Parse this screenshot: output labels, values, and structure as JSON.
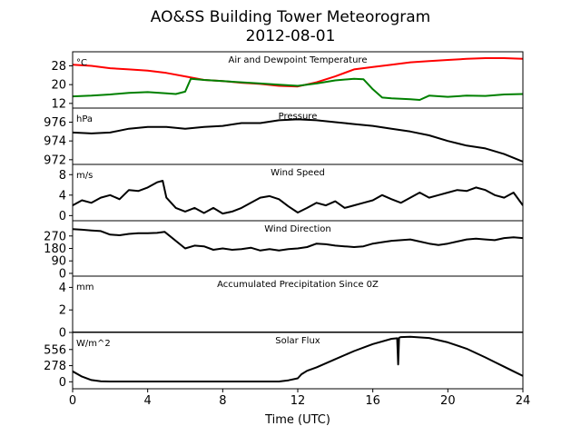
{
  "figure": {
    "title_line1": "AO&SS Building Tower Meteorogram",
    "title_line2": "2012-08-01",
    "xlabel": "Time (UTC)"
  },
  "chart_data": {
    "type": "line",
    "x_range": [
      0,
      24
    ],
    "x_ticks": [
      0,
      4,
      8,
      12,
      16,
      20,
      24
    ],
    "x_tick_labels": [
      "0",
      "4",
      "8",
      "12",
      "16",
      "20",
      "24"
    ],
    "panels": [
      {
        "id": "temperature",
        "title": "Air and Dewpoint Temperature",
        "unit": "°C",
        "ylim": [
          10,
          34
        ],
        "y_ticks": [
          12,
          20,
          28
        ],
        "y_tick_labels": [
          "12",
          "20",
          "28"
        ],
        "series": [
          {
            "color": "#ff0000",
            "x": [
              0,
              1,
              2,
              3,
              4,
              5,
              6,
              7,
              8,
              9,
              10,
              11,
              12,
              13,
              14,
              15,
              16,
              17,
              18,
              19,
              20,
              21,
              22,
              23,
              24
            ],
            "y": [
              28.5,
              28,
              27,
              26.5,
              26,
              25,
              23.5,
              22,
              21.5,
              20.8,
              20.3,
              19.5,
              19.2,
              21,
              23.5,
              26.5,
              27.5,
              28.5,
              29.5,
              30,
              30.5,
              31,
              31.3,
              31.3,
              31
            ]
          },
          {
            "color": "#008000",
            "x": [
              0,
              1,
              2,
              3,
              4,
              5,
              5.5,
              6,
              6.3,
              7,
              8,
              9,
              10,
              11,
              12,
              13,
              14,
              15,
              15.5,
              16,
              16.5,
              17,
              18,
              18.5,
              19,
              20,
              21,
              22,
              23,
              24
            ],
            "y": [
              15,
              15.3,
              15.8,
              16.5,
              16.8,
              16.3,
              16,
              17,
              22.5,
              22,
              21.5,
              21,
              20.5,
              20,
              19.5,
              20.5,
              21.8,
              22.5,
              22.3,
              18,
              14.5,
              14.2,
              13.8,
              13.5,
              15.3,
              14.8,
              15.3,
              15.2,
              15.8,
              16
            ]
          }
        ]
      },
      {
        "id": "pressure",
        "title": "Pressure",
        "unit": "hPa",
        "ylim": [
          971.5,
          977.5
        ],
        "y_ticks": [
          972,
          974,
          976
        ],
        "y_tick_labels": [
          "972",
          "974",
          "976"
        ],
        "series": [
          {
            "color": "#000000",
            "x": [
              0,
              1,
              2,
              3,
              4,
              5,
              6,
              7,
              8,
              9,
              10,
              11,
              12,
              13,
              14,
              15,
              16,
              17,
              18,
              19,
              20,
              21,
              22,
              23,
              24
            ],
            "y": [
              974.9,
              974.8,
              974.9,
              975.3,
              975.5,
              975.5,
              975.3,
              975.5,
              975.6,
              975.9,
              975.9,
              976.2,
              976.3,
              976.2,
              976.0,
              975.8,
              975.6,
              975.3,
              975.0,
              974.6,
              974.0,
              973.5,
              973.2,
              972.6,
              971.8
            ]
          }
        ]
      },
      {
        "id": "wind_speed",
        "title": "Wind Speed",
        "unit": "m/s",
        "ylim": [
          -1,
          10
        ],
        "y_ticks": [
          0,
          4,
          8
        ],
        "y_tick_labels": [
          "0",
          "4",
          "8"
        ],
        "series": [
          {
            "color": "#000000",
            "x": [
              0,
              0.5,
              1,
              1.5,
              2,
              2.5,
              3,
              3.5,
              4,
              4.5,
              4.8,
              5,
              5.5,
              6,
              6.5,
              7,
              7.5,
              8,
              8.5,
              9,
              9.5,
              10,
              10.5,
              11,
              11.5,
              12,
              12.5,
              13,
              13.5,
              14,
              14.5,
              15,
              15.5,
              16,
              16.5,
              17,
              17.5,
              18,
              18.5,
              19,
              19.5,
              20,
              20.5,
              21,
              21.5,
              22,
              22.5,
              23,
              23.5,
              24
            ],
            "y": [
              2,
              3,
              2.5,
              3.5,
              4,
              3.2,
              5,
              4.8,
              5.5,
              6.5,
              6.8,
              3.5,
              1.5,
              0.8,
              1.5,
              0.5,
              1.5,
              0.4,
              0.8,
              1.5,
              2.5,
              3.5,
              3.8,
              3.2,
              1.8,
              0.6,
              1.5,
              2.5,
              2,
              2.8,
              1.5,
              2,
              2.5,
              3,
              4,
              3.2,
              2.5,
              3.5,
              4.5,
              3.5,
              4,
              4.5,
              5,
              4.8,
              5.5,
              5,
              4,
              3.5,
              4.5,
              2
            ]
          }
        ]
      },
      {
        "id": "wind_direction",
        "title": "Wind Direction",
        "unit": "",
        "ylim": [
          -20,
          380
        ],
        "y_ticks": [
          0,
          90,
          180,
          270
        ],
        "y_tick_labels": [
          "0",
          "90",
          "180",
          "270"
        ],
        "series": [
          {
            "color": "#000000",
            "x": [
              0,
              0.5,
              1,
              1.5,
              2,
              2.5,
              3,
              3.5,
              4,
              4.5,
              4.9,
              6,
              6.5,
              7,
              7.5,
              8,
              8.5,
              9,
              9.5,
              10,
              10.5,
              11,
              11.5,
              12,
              12.5,
              13,
              13.5,
              14,
              14.5,
              15,
              15.5,
              16,
              16.5,
              17,
              17.5,
              18,
              18.5,
              19,
              19.5,
              20,
              20.5,
              21,
              21.5,
              22,
              22.5,
              23,
              23.5,
              24
            ],
            "y": [
              320,
              315,
              310,
              305,
              280,
              275,
              285,
              290,
              290,
              292,
              300,
              180,
              200,
              195,
              170,
              180,
              170,
              175,
              185,
              165,
              175,
              165,
              175,
              180,
              190,
              215,
              210,
              200,
              195,
              190,
              195,
              215,
              225,
              235,
              240,
              245,
              230,
              215,
              205,
              215,
              230,
              245,
              250,
              245,
              240,
              255,
              260,
              255
            ]
          }
        ]
      },
      {
        "id": "precipitation",
        "title": "Accumulated Precipitation Since 0Z",
        "unit": "mm",
        "ylim": [
          0,
          5
        ],
        "y_ticks": [
          0,
          2,
          4
        ],
        "y_tick_labels": [
          "0",
          "2",
          "4"
        ],
        "series": [
          {
            "color": "#000000",
            "x": [
              0,
              24
            ],
            "y": [
              0,
              0
            ]
          }
        ]
      },
      {
        "id": "solar",
        "title": "Solar Flux",
        "unit": "W/m^2",
        "ylim": [
          -120,
          850
        ],
        "y_ticks": [
          0,
          278,
          556
        ],
        "y_tick_labels": [
          "0",
          "278",
          "556"
        ],
        "series": [
          {
            "color": "#000000",
            "x": [
              0,
              0.5,
              1,
              1.5,
              2,
              4,
              6,
              8,
              10,
              11,
              11.5,
              12,
              12.2,
              12.5,
              13,
              14,
              15,
              16,
              17,
              17.3,
              17.35,
              17.4,
              17.5,
              18,
              19,
              20,
              21,
              22,
              22.5,
              23,
              23.5,
              24
            ],
            "y": [
              180,
              90,
              30,
              10,
              5,
              5,
              5,
              5,
              5,
              5,
              25,
              60,
              130,
              190,
              250,
              390,
              530,
              650,
              740,
              750,
              300,
              760,
              770,
              775,
              755,
              680,
              570,
              420,
              340,
              260,
              180,
              100
            ]
          }
        ]
      }
    ]
  }
}
